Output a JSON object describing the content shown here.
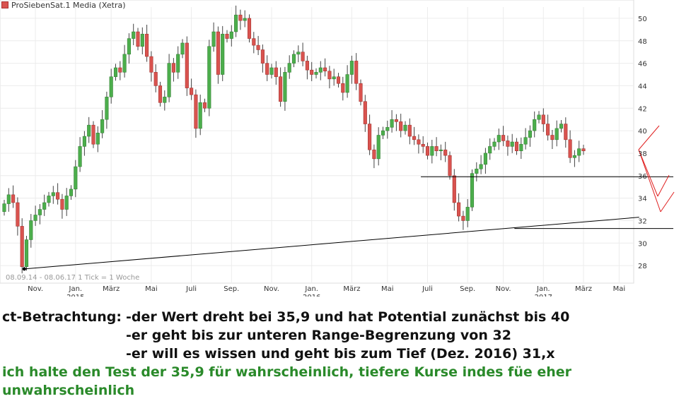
{
  "legend": {
    "name": "ProSiebenSat.1 Media (Xetra)",
    "color": "#d9534f"
  },
  "caption": "08.09.14 - 08.06.17   1 Tick = 1 Woche",
  "chart_data": {
    "type": "candlestick",
    "title": "ProSiebenSat.1 Media (Xetra)",
    "y_ticks": [
      28,
      30,
      32,
      34,
      36,
      38,
      40,
      42,
      44,
      46,
      48,
      50
    ],
    "ylim": [
      26.5,
      51
    ],
    "x_labels": [
      {
        "label": "Nov.",
        "week": 7
      },
      {
        "label": "Jan.",
        "sub": "2015",
        "week": 16
      },
      {
        "label": "März",
        "week": 24
      },
      {
        "label": "Mai",
        "week": 33
      },
      {
        "label": "Juli",
        "week": 42
      },
      {
        "label": "Sep.",
        "week": 51
      },
      {
        "label": "Nov.",
        "week": 60
      },
      {
        "label": "Jan.",
        "sub": "2016",
        "week": 69
      },
      {
        "label": "März",
        "week": 78
      },
      {
        "label": "Mai",
        "week": 86
      },
      {
        "label": "Juli",
        "week": 95
      },
      {
        "label": "Sep.",
        "week": 104
      },
      {
        "label": "Nov.",
        "week": 112
      },
      {
        "label": "Jan.",
        "sub": "2017",
        "week": 121
      },
      {
        "label": "März",
        "week": 130
      },
      {
        "label": "Mai",
        "week": 138
      }
    ],
    "closes": [
      33.5,
      34.3,
      33.6,
      31.5,
      27.9,
      30.3,
      32.0,
      32.5,
      33.0,
      33.6,
      34.2,
      34.5,
      33.9,
      33.0,
      34.2,
      34.8,
      36.8,
      38.6,
      39.5,
      40.5,
      38.8,
      39.8,
      41.0,
      43.0,
      44.8,
      45.6,
      45.2,
      46.8,
      48.2,
      48.8,
      47.5,
      48.6,
      46.6,
      45.2,
      44.0,
      42.5,
      43.0,
      46.0,
      45.2,
      46.8,
      47.8,
      43.8,
      43.2,
      40.2,
      42.5,
      42.0,
      47.5,
      48.8,
      45.0,
      48.6,
      48.2,
      48.8,
      50.3,
      49.8,
      50.0,
      48.2,
      47.6,
      47.2,
      46.0,
      45.0,
      45.6,
      44.8,
      42.6,
      45.2,
      46.0,
      46.8,
      47.0,
      46.2,
      45.4,
      45.0,
      45.2,
      45.6,
      45.3,
      44.6,
      44.8,
      44.2,
      43.4,
      45.0,
      46.2,
      44.2,
      42.6,
      40.6,
      38.3,
      37.5,
      39.6,
      40.0,
      40.3,
      41.0,
      40.8,
      40.0,
      40.5,
      39.5,
      39.2,
      38.8,
      38.6,
      37.8,
      38.6,
      38.2,
      38.3,
      37.8,
      36.0,
      33.6,
      32.4,
      32.0,
      33.2,
      36.2,
      36.6,
      37.0,
      38.0,
      38.6,
      39.0,
      39.6,
      39.1,
      38.6,
      39.0,
      38.2,
      38.8,
      39.4,
      40.0,
      41.0,
      41.4,
      40.6,
      39.6,
      39.2,
      40.2,
      40.6,
      39.2,
      37.6,
      37.8,
      38.4,
      38.2
    ],
    "support_lines": [
      35.9,
      32,
      31.3
    ],
    "trendline": {
      "from": [
        4.5,
        27.7
      ],
      "to": [
        142.5,
        32.3
      ]
    },
    "projection_color": "#e02020"
  },
  "notes": {
    "label": "ct-Betrachtung:",
    "line1": "-der Wert dreht bei 35,9 und hat Potential zunächst bis 40",
    "line2": "-er geht bis zur unteren Range-Begrenzung von 32",
    "line3": "-er will es wissen und geht bis zum Tief (Dez. 2016) 31,x",
    "green": "ich halte den Test  der 35,9 für wahrscheinlich, tiefere Kurse indes füe eher unwahrscheinlich"
  }
}
